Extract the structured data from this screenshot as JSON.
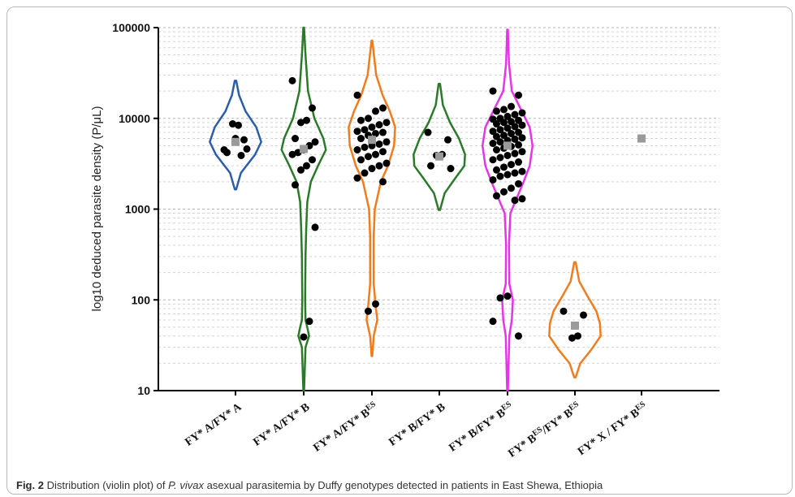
{
  "chart_data": {
    "type": "violin",
    "ylabel": "log10 deduced parasite density (P/μL)",
    "yscale": "log",
    "ylim": [
      10,
      100000
    ],
    "y_ticks": [
      "10",
      "100",
      "1000",
      "10000",
      "100000"
    ],
    "grid": "horizontal dashed",
    "categories": [
      {
        "base": "FY* A/FY* A",
        "sup": ""
      },
      {
        "base": "FY* A/FY* B",
        "sup": ""
      },
      {
        "base": "FY* A/FY* B",
        "sup": "ES"
      },
      {
        "base": "FY* B/FY* B",
        "sup": ""
      },
      {
        "base": "FY* B/FY* B",
        "sup": "ES"
      },
      {
        "base": "FY* B",
        "sup": "ES",
        "base2": "/FY* B",
        "sup2": "ES"
      },
      {
        "base": "FY* X / FY* B",
        "sup": "ES"
      }
    ],
    "series": [
      {
        "color": "#2b5ea7",
        "range": [
          1650,
          26000
        ],
        "median": 5500,
        "shape": [
          [
            1650,
            0.02
          ],
          [
            2500,
            0.15
          ],
          [
            4000,
            0.55
          ],
          [
            5500,
            0.72
          ],
          [
            8000,
            0.58
          ],
          [
            12000,
            0.28
          ],
          [
            18000,
            0.1
          ],
          [
            26000,
            0.02
          ]
        ],
        "points": [
          4500,
          5800,
          8400,
          8700,
          4200,
          4600,
          3900,
          6000
        ]
      },
      {
        "color": "#2a7a2a",
        "range": [
          10,
          100000
        ],
        "median": 4600,
        "shape": [
          [
            10,
            0.01
          ],
          [
            30,
            0.05
          ],
          [
            40,
            0.15
          ],
          [
            50,
            0.1
          ],
          [
            60,
            0.05
          ],
          [
            100,
            0.04
          ],
          [
            300,
            0.05
          ],
          [
            600,
            0.07
          ],
          [
            1200,
            0.1
          ],
          [
            2000,
            0.2
          ],
          [
            3000,
            0.4
          ],
          [
            4500,
            0.62
          ],
          [
            6000,
            0.55
          ],
          [
            10000,
            0.3
          ],
          [
            20000,
            0.12
          ],
          [
            50000,
            0.05
          ],
          [
            100000,
            0.01
          ]
        ],
        "points": [
          26000,
          13000,
          9500,
          9000,
          6000,
          5500,
          5000,
          4500,
          4200,
          4000,
          3500,
          3000,
          2700,
          1850,
          630,
          58,
          39
        ]
      },
      {
        "color": "#f07c1e",
        "range": [
          24,
          72000
        ],
        "median": 5800,
        "shape": [
          [
            24,
            0.01
          ],
          [
            40,
            0.05
          ],
          [
            60,
            0.15
          ],
          [
            90,
            0.1
          ],
          [
            150,
            0.05
          ],
          [
            500,
            0.05
          ],
          [
            1000,
            0.08
          ],
          [
            2000,
            0.25
          ],
          [
            3000,
            0.45
          ],
          [
            5000,
            0.62
          ],
          [
            8000,
            0.65
          ],
          [
            12000,
            0.5
          ],
          [
            18000,
            0.3
          ],
          [
            30000,
            0.12
          ],
          [
            72000,
            0.01
          ]
        ],
        "points": [
          18000,
          13000,
          12000,
          10000,
          9500,
          9000,
          8500,
          8000,
          7500,
          7200,
          7000,
          6800,
          6500,
          6000,
          5500,
          5200,
          5000,
          4800,
          4500,
          4300,
          4000,
          3800,
          3500,
          3200,
          3000,
          2800,
          2500,
          2200,
          2000,
          90,
          75
        ]
      },
      {
        "color": "#2a7a2a",
        "range": [
          980,
          24000
        ],
        "median": 3800,
        "shape": [
          [
            980,
            0.02
          ],
          [
            1500,
            0.15
          ],
          [
            2200,
            0.45
          ],
          [
            3000,
            0.7
          ],
          [
            4000,
            0.72
          ],
          [
            6000,
            0.55
          ],
          [
            9000,
            0.3
          ],
          [
            14000,
            0.1
          ],
          [
            24000,
            0.02
          ]
        ],
        "points": [
          7000,
          5800,
          4000,
          3900,
          3000,
          2800
        ]
      },
      {
        "color": "#e535e5",
        "range": [
          10,
          95000
        ],
        "median": 5000,
        "shape": [
          [
            10,
            0.01
          ],
          [
            40,
            0.05
          ],
          [
            60,
            0.12
          ],
          [
            100,
            0.15
          ],
          [
            150,
            0.05
          ],
          [
            400,
            0.04
          ],
          [
            900,
            0.08
          ],
          [
            1300,
            0.25
          ],
          [
            2000,
            0.45
          ],
          [
            3000,
            0.62
          ],
          [
            5000,
            0.7
          ],
          [
            8000,
            0.62
          ],
          [
            12000,
            0.4
          ],
          [
            20000,
            0.12
          ],
          [
            40000,
            0.04
          ],
          [
            95000,
            0.01
          ]
        ],
        "points": [
          20000,
          18000,
          13500,
          12500,
          12000,
          11500,
          11000,
          10500,
          10000,
          9800,
          9500,
          9200,
          9000,
          8700,
          8400,
          8100,
          7800,
          7500,
          7200,
          7000,
          6800,
          6500,
          6300,
          6100,
          5900,
          5700,
          5500,
          5300,
          5100,
          4900,
          4700,
          4500,
          4300,
          4100,
          3900,
          3700,
          3500,
          3300,
          3100,
          2900,
          2700,
          2600,
          2500,
          2400,
          2300,
          2100,
          1900,
          1700,
          1550,
          1400,
          1300,
          1250,
          110,
          105,
          58,
          40
        ]
      },
      {
        "color": "#f07c1e",
        "range": [
          14,
          260
        ],
        "median": 52,
        "shape": [
          [
            14,
            0.02
          ],
          [
            20,
            0.15
          ],
          [
            28,
            0.45
          ],
          [
            40,
            0.72
          ],
          [
            55,
            0.7
          ],
          [
            75,
            0.6
          ],
          [
            110,
            0.35
          ],
          [
            160,
            0.12
          ],
          [
            260,
            0.02
          ]
        ],
        "points": [
          75,
          68,
          40,
          38
        ]
      },
      {
        "color": "#f07c1e",
        "range": null,
        "median": 6000,
        "shape": [],
        "points": []
      }
    ]
  },
  "caption": {
    "label": "Fig. 2",
    "text_before": "Distribution (violin plot) of",
    "italic": "P. vivax",
    "text_after": "asexual parasitemia by Duffy genotypes detected in patients in East Shewa, Ethiopia"
  }
}
